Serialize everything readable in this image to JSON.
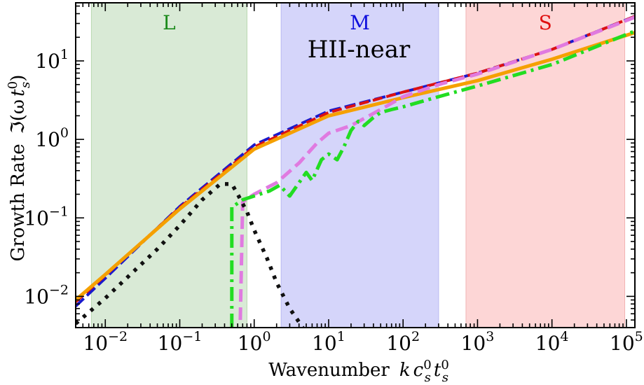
{
  "chart_data": {
    "type": "line",
    "title": "",
    "annotation": "HII-near",
    "xlabel": "Wavenumber  k c_s^0 t_s^0",
    "xlabel_parts": {
      "prefix": "Wavenumber",
      "k": "k",
      "c": "c",
      "t": "t",
      "sub": "s",
      "sup": "0"
    },
    "ylabel": "Growth Rate  ℑ(ω t_s^0)",
    "ylabel_parts": {
      "prefix": "Growth Rate",
      "im": "ℑ(ω",
      "t": "t",
      "sub": "s",
      "sup": "0",
      "close": ")"
    },
    "xscale": "log",
    "yscale": "log",
    "xlim": [
      0.004,
      130000
    ],
    "ylim": [
      0.004,
      55
    ],
    "x_ticks": [
      {
        "value": 0.01,
        "mant": "10",
        "exp": "−2"
      },
      {
        "value": 0.1,
        "mant": "10",
        "exp": "−1"
      },
      {
        "value": 1,
        "mant": "10",
        "exp": "0"
      },
      {
        "value": 10,
        "mant": "10",
        "exp": "1"
      },
      {
        "value": 100,
        "mant": "10",
        "exp": "2"
      },
      {
        "value": 1000,
        "mant": "10",
        "exp": "3"
      },
      {
        "value": 10000,
        "mant": "10",
        "exp": "4"
      },
      {
        "value": 100000,
        "mant": "10",
        "exp": "5"
      }
    ],
    "y_ticks": [
      {
        "value": 0.01,
        "mant": "10",
        "exp": "−2"
      },
      {
        "value": 0.1,
        "mant": "10",
        "exp": "−1"
      },
      {
        "value": 1,
        "mant": "10",
        "exp": "0"
      },
      {
        "value": 10,
        "mant": "10",
        "exp": "1"
      }
    ],
    "regions": [
      {
        "label": "L",
        "x_range": [
          0.0065,
          0.8
        ],
        "fill": "#d9ead6",
        "edge": "#b9d8b0",
        "label_color": "#1a8a1a"
      },
      {
        "label": "M",
        "x_range": [
          2.3,
          300
        ],
        "fill": "#d5d5fa",
        "edge": "#b8b8f2",
        "label_color": "#1010dd"
      },
      {
        "label": "S",
        "x_range": [
          700,
          95000
        ],
        "fill": "#fdd6d6",
        "edge": "#f1b3b3",
        "label_color": "#e01010"
      }
    ],
    "series": [
      {
        "name": "blue-dashed",
        "color": "#1a1acc",
        "width": 4,
        "dash": "16 6",
        "x": [
          0.004,
          0.01,
          0.1,
          1,
          10,
          100,
          1000,
          10000,
          130000
        ],
        "y": [
          0.0075,
          0.017,
          0.14,
          0.85,
          2.3,
          4.0,
          7.0,
          14.0,
          37
        ]
      },
      {
        "name": "red-dashed",
        "color": "#dd1111",
        "width": 4,
        "dash": "14 6",
        "x": [
          0.004,
          0.01,
          0.1,
          1,
          10,
          100,
          1000,
          10000,
          130000
        ],
        "y": [
          0.0085,
          0.0185,
          0.135,
          0.8,
          2.2,
          4.0,
          7.0,
          14.0,
          37
        ]
      },
      {
        "name": "orange-solid",
        "color": "#f5a000",
        "width": 5,
        "dash": "",
        "x": [
          0.004,
          0.01,
          0.1,
          1,
          10,
          100,
          1000,
          10000,
          130000
        ],
        "y": [
          0.009,
          0.019,
          0.13,
          0.75,
          2.0,
          3.4,
          5.6,
          10.5,
          23
        ]
      },
      {
        "name": "violet-dashed",
        "color": "#e07ae0",
        "width": 5,
        "dash": "18 8",
        "x": [
          0.65,
          0.7,
          1.0,
          2.0,
          4.0,
          7.0,
          10,
          20,
          50,
          100,
          300,
          1000,
          10000,
          130000
        ],
        "y": [
          0.005,
          0.16,
          0.2,
          0.28,
          0.5,
          0.9,
          1.2,
          1.5,
          2.4,
          3.5,
          5.0,
          6.8,
          14,
          36
        ]
      },
      {
        "name": "green-dashdot",
        "color": "#22dd22",
        "width": 5,
        "dash": "20 7 4 7",
        "x": [
          0.5,
          0.5,
          0.52,
          0.7,
          1.0,
          1.6,
          2.2,
          3.0,
          4.0,
          5.0,
          6.0,
          8.0,
          10,
          13,
          16,
          20,
          25,
          30,
          40,
          50,
          70,
          100,
          300,
          1000,
          10000,
          130000
        ],
        "y": [
          0.004,
          0.14,
          0.14,
          0.17,
          0.19,
          0.22,
          0.26,
          0.19,
          0.28,
          0.38,
          0.3,
          0.55,
          0.65,
          0.55,
          0.8,
          1.3,
          1.7,
          1.5,
          1.9,
          2.2,
          2.4,
          2.6,
          3.5,
          4.8,
          9,
          24
        ]
      },
      {
        "name": "black-dotted",
        "color": "#111111",
        "width": 5.5,
        "dash": "5 9",
        "x": [
          0.004,
          0.01,
          0.05,
          0.1,
          0.2,
          0.35,
          0.5,
          0.6,
          0.8,
          1.0,
          1.5,
          2.0,
          3.0,
          4.5
        ],
        "y": [
          0.0045,
          0.0095,
          0.04,
          0.08,
          0.17,
          0.27,
          0.27,
          0.2,
          0.12,
          0.07,
          0.03,
          0.015,
          0.007,
          0.004
        ]
      }
    ]
  }
}
